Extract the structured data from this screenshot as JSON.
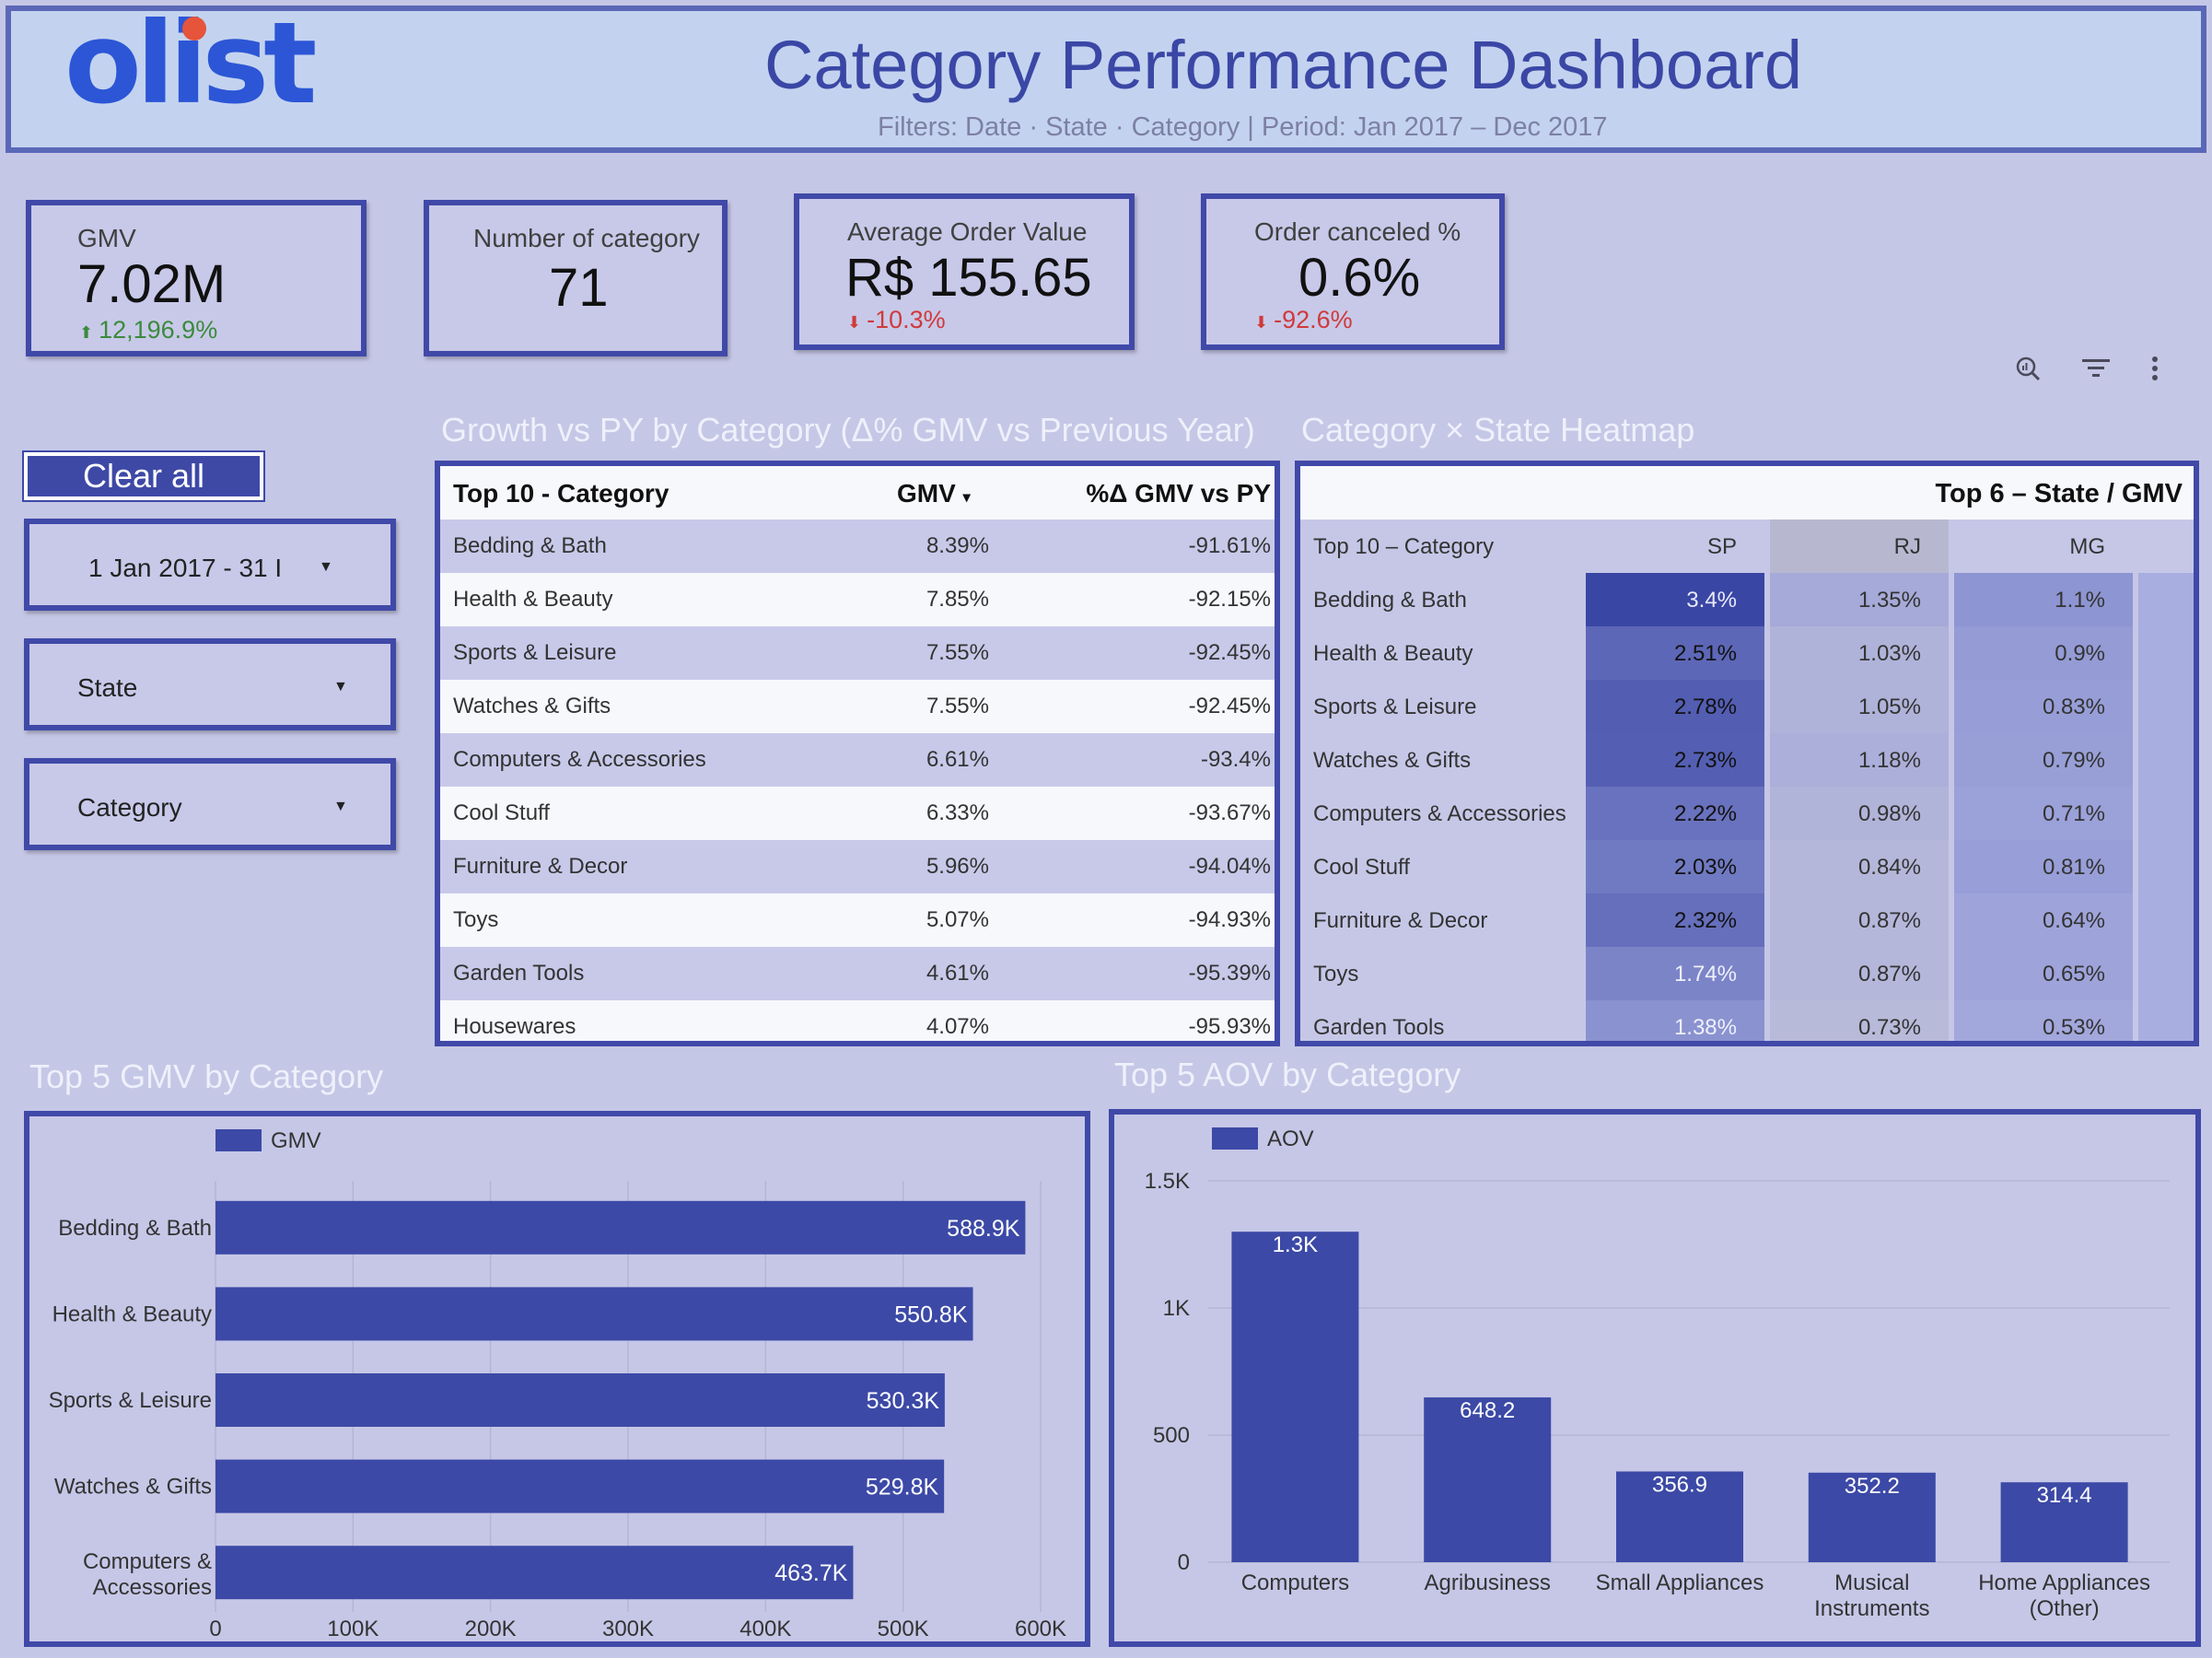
{
  "header": {
    "logo_text": "olist",
    "title": "Category Performance Dashboard",
    "subtitle": "Filters: Date · State · Category | Period: Jan 2017 – Dec 2017"
  },
  "kpis": [
    {
      "label": "GMV",
      "value": "7.02M",
      "delta": "12,196.9%",
      "direction": "up"
    },
    {
      "label": "Number of category",
      "value": "71"
    },
    {
      "label": "Average Order Value",
      "value": "R$ 155.65",
      "delta": "-10.3%",
      "direction": "down"
    },
    {
      "label": "Order canceled %",
      "value": "0.6%",
      "delta": "-92.6%",
      "direction": "down"
    }
  ],
  "toolbar": {
    "icons": [
      "explore-icon",
      "filter-icon",
      "more-vert-icon"
    ]
  },
  "filters": {
    "clear_all_label": "Clear all",
    "date_range": "1 Jan 2017 - 31 I",
    "state": "State",
    "category": "Category"
  },
  "growth_table": {
    "title": "Growth vs PY by Category (Δ% GMV vs Previous Year)",
    "headers": [
      "Top 10 - Category",
      "GMV",
      "%Δ GMV vs PY"
    ],
    "sort_indicator": "▾",
    "rows": [
      [
        "Bedding & Bath",
        "8.39%",
        "-91.61%"
      ],
      [
        "Health & Beauty",
        "7.85%",
        "-92.15%"
      ],
      [
        "Sports & Leisure",
        "7.55%",
        "-92.45%"
      ],
      [
        "Watches & Gifts",
        "7.55%",
        "-92.45%"
      ],
      [
        "Computers & Accessories",
        "6.61%",
        "-93.4%"
      ],
      [
        "Cool Stuff",
        "6.33%",
        "-93.67%"
      ],
      [
        "Furniture & Decor",
        "5.96%",
        "-94.04%"
      ],
      [
        "Toys",
        "5.07%",
        "-94.93%"
      ],
      [
        "Garden Tools",
        "4.61%",
        "-95.39%"
      ],
      [
        "Housewares",
        "4.07%",
        "-95.93%"
      ]
    ]
  },
  "heatmap": {
    "title": "Category × State Heatmap",
    "group_header": "Top 6 – State / GMV",
    "row_header": "Top 10 – Category",
    "states": [
      "SP",
      "RJ",
      "MG"
    ],
    "rows": [
      {
        "category": "Bedding & Bath",
        "values": [
          "3.4%",
          "1.35%",
          "1.1%"
        ]
      },
      {
        "category": "Health & Beauty",
        "values": [
          "2.51%",
          "1.03%",
          "0.9%"
        ]
      },
      {
        "category": "Sports & Leisure",
        "values": [
          "2.78%",
          "1.05%",
          "0.83%"
        ]
      },
      {
        "category": "Watches & Gifts",
        "values": [
          "2.73%",
          "1.18%",
          "0.79%"
        ]
      },
      {
        "category": "Computers & Accessories",
        "values": [
          "2.22%",
          "0.98%",
          "0.71%"
        ]
      },
      {
        "category": "Cool Stuff",
        "values": [
          "2.03%",
          "0.84%",
          "0.81%"
        ]
      },
      {
        "category": "Furniture & Decor",
        "values": [
          "2.32%",
          "0.87%",
          "0.64%"
        ]
      },
      {
        "category": "Toys",
        "values": [
          "1.74%",
          "0.87%",
          "0.65%"
        ]
      },
      {
        "category": "Garden Tools",
        "values": [
          "1.38%",
          "0.73%",
          "0.53%"
        ]
      }
    ]
  },
  "chart_data": [
    {
      "type": "bar",
      "orientation": "horizontal",
      "title": "Top 5 GMV by Category",
      "legend": "GMV",
      "legend_position": "top-left",
      "categories": [
        "Bedding & Bath",
        "Health & Beauty",
        "Sports & Leisure",
        "Watches & Gifts",
        "Computers & Accessories"
      ],
      "values": [
        588900,
        550800,
        530300,
        529800,
        463700
      ],
      "data_labels": [
        "588.9K",
        "550.8K",
        "530.3K",
        "529.8K",
        "463.7K"
      ],
      "xlim": [
        0,
        600000
      ],
      "ticks": [
        0,
        100000,
        200000,
        300000,
        400000,
        500000,
        600000
      ],
      "tick_labels": [
        "0",
        "100K",
        "200K",
        "300K",
        "400K",
        "500K",
        "600K"
      ],
      "grid": true,
      "color": "#3c49a6"
    },
    {
      "type": "bar",
      "orientation": "vertical",
      "title": "Top 5 AOV by Category",
      "legend": "AOV",
      "legend_position": "top-left",
      "categories": [
        "Computers",
        "Agribusiness",
        "Small Appliances",
        "Musical Instruments",
        "Home Appliances (Other)"
      ],
      "values": [
        1300,
        648.2,
        356.9,
        352.2,
        314.4
      ],
      "data_labels": [
        "1.3K",
        "648.2",
        "356.9",
        "352.2",
        "314.4"
      ],
      "ylim": [
        0,
        1500
      ],
      "ticks": [
        0,
        500,
        1000,
        1500
      ],
      "tick_labels": [
        "0",
        "500",
        "1K",
        "1.5K"
      ],
      "grid": true,
      "color": "#3c49a6"
    }
  ]
}
